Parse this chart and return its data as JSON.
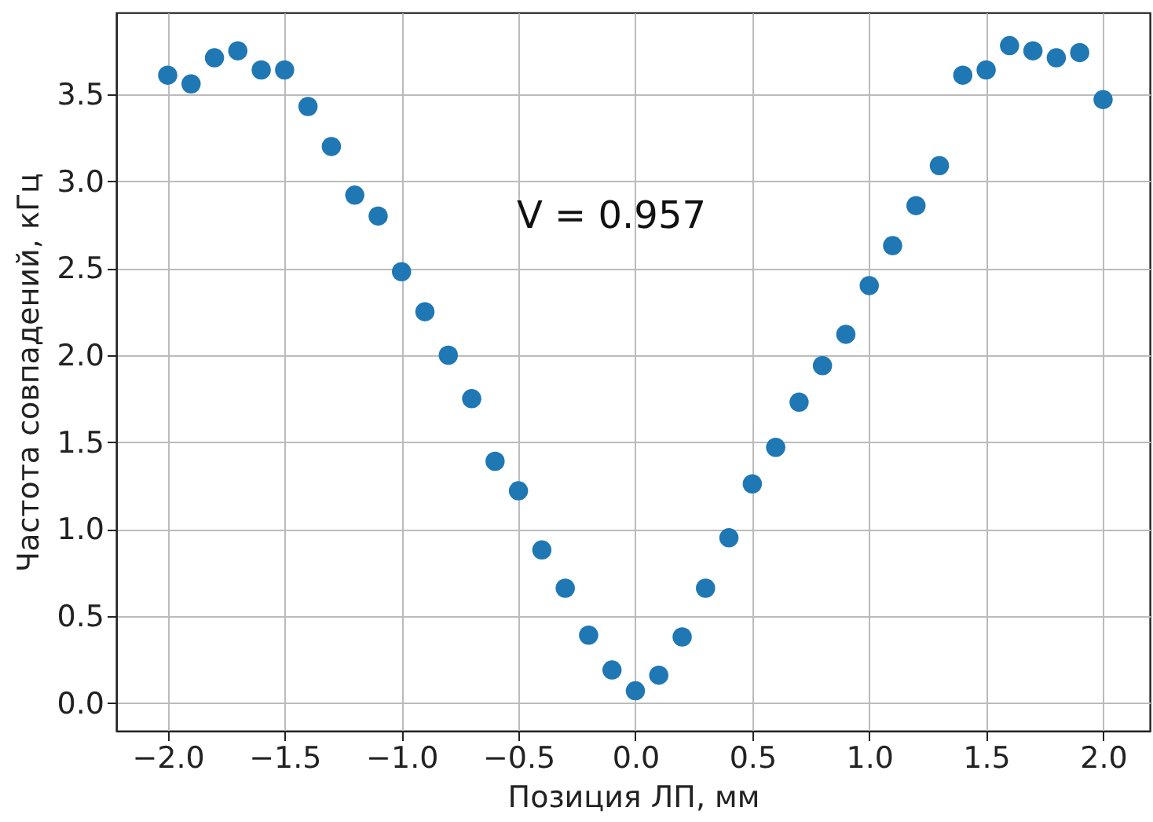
{
  "chart_data": {
    "type": "scatter",
    "xlabel": "Позиция ЛП, мм",
    "ylabel": "Частота совпадений, кГц",
    "annotations": [
      "V = 0.957"
    ],
    "x": [
      -2.0,
      -1.9,
      -1.8,
      -1.7,
      -1.6,
      -1.5,
      -1.4,
      -1.3,
      -1.2,
      -1.1,
      -1.0,
      -0.9,
      -0.8,
      -0.7,
      -0.6,
      -0.5,
      -0.4,
      -0.3,
      -0.2,
      -0.1,
      0.0,
      0.1,
      0.2,
      0.3,
      0.4,
      0.5,
      0.6,
      0.7,
      0.8,
      0.9,
      1.0,
      1.1,
      1.2,
      1.3,
      1.4,
      1.5,
      1.6,
      1.7,
      1.8,
      1.9,
      2.0
    ],
    "series": [
      {
        "color": "#1f77b4",
        "values": [
          3.61,
          3.56,
          3.71,
          3.75,
          3.64,
          3.64,
          3.43,
          3.2,
          2.92,
          2.8,
          2.48,
          2.25,
          2.0,
          1.75,
          1.39,
          1.22,
          0.88,
          0.66,
          0.39,
          0.19,
          0.07,
          0.16,
          0.38,
          0.66,
          0.95,
          1.26,
          1.47,
          1.73,
          1.94,
          2.12,
          2.4,
          2.63,
          2.86,
          3.09,
          3.61,
          3.64,
          3.78,
          3.75,
          3.71,
          3.74,
          3.47
        ]
      }
    ],
    "xlim": [
      -2.22,
      2.2
    ],
    "ylim": [
      -0.16,
      3.97
    ],
    "xticks": [
      {
        "value": -2.0,
        "label": "−2.0"
      },
      {
        "value": -1.5,
        "label": "−1.5"
      },
      {
        "value": -1.0,
        "label": "−1.0"
      },
      {
        "value": -0.5,
        "label": "−0.5"
      },
      {
        "value": 0.0,
        "label": "0.0"
      },
      {
        "value": 0.5,
        "label": "0.5"
      },
      {
        "value": 1.0,
        "label": "1.0"
      },
      {
        "value": 1.5,
        "label": "1.5"
      },
      {
        "value": 2.0,
        "label": "2.0"
      }
    ],
    "yticks": [
      {
        "value": 0.0,
        "label": "0.0"
      },
      {
        "value": 0.5,
        "label": "0.5"
      },
      {
        "value": 1.0,
        "label": "1.0"
      },
      {
        "value": 1.5,
        "label": "1.5"
      },
      {
        "value": 2.0,
        "label": "2.0"
      },
      {
        "value": 2.5,
        "label": "2.5"
      },
      {
        "value": 3.0,
        "label": "3.0"
      },
      {
        "value": 3.5,
        "label": "3.5"
      }
    ],
    "grid": true,
    "marker": "circle"
  }
}
